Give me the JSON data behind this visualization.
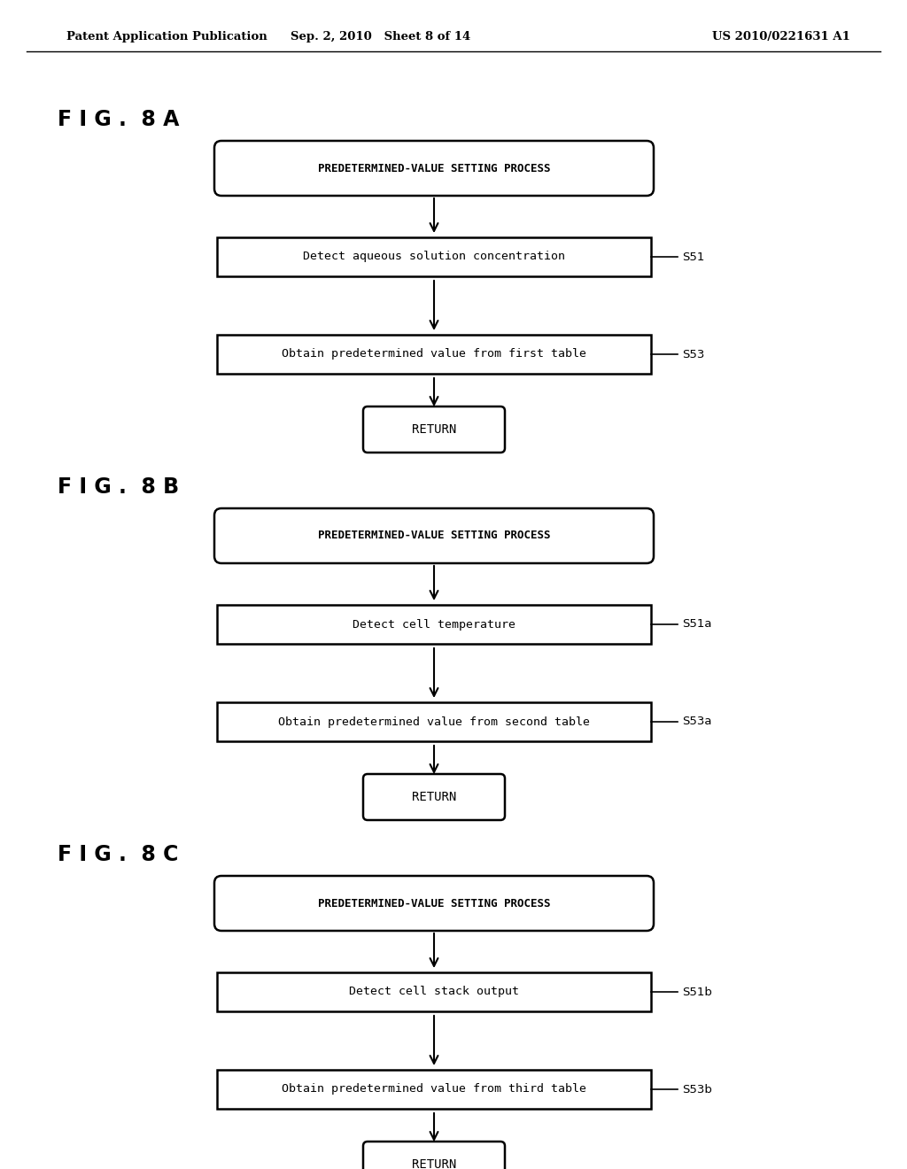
{
  "bg_color": "#ffffff",
  "header_left": "Patent Application Publication",
  "header_mid": "Sep. 2, 2010   Sheet 8 of 14",
  "header_right": "US 2010/0221631 A1",
  "diagrams": [
    {
      "label": "F I G .  8 A",
      "top_node": "PREDETERMINED-VALUE SETTING PROCESS",
      "step1_text": "Detect aqueous solution concentration",
      "step1_label": "S51",
      "step2_text": "Obtain predetermined value from first table",
      "step2_label": "S53"
    },
    {
      "label": "F I G .  8 B",
      "top_node": "PREDETERMINED-VALUE SETTING PROCESS",
      "step1_text": "Detect cell temperature",
      "step1_label": "S51a",
      "step2_text": "Obtain predetermined value from second table",
      "step2_label": "S53a"
    },
    {
      "label": "F I G .  8 C",
      "top_node": "PREDETERMINED-VALUE SETTING PROCESS",
      "step1_text": "Detect cell stack output",
      "step1_label": "S51b",
      "step2_text": "Obtain predetermined value from third table",
      "step2_label": "S53b"
    }
  ]
}
